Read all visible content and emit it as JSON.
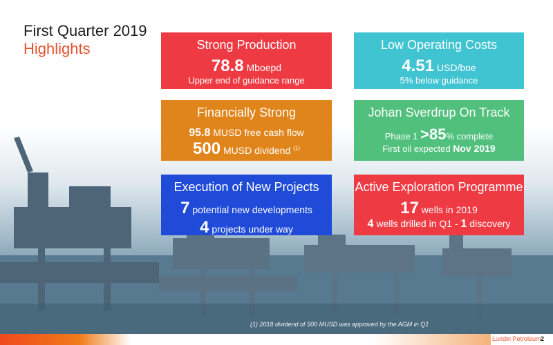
{
  "title": {
    "line1": "First Quarter 2019",
    "line2": "Highlights"
  },
  "cards": [
    {
      "title": "Strong Production",
      "value": "78.8",
      "unit": " Mboepd",
      "sub": "Upper end of guidance range"
    },
    {
      "title": "Low Operating Costs",
      "value": "4.51",
      "unit": " USD/boe",
      "sub": "5% below guidance"
    },
    {
      "title": "Financially Strong",
      "value1": "95.8",
      "text1": " MUSD free cash flow",
      "value2": "500",
      "text2": " MUSD dividend ",
      "note": "(1)"
    },
    {
      "title": "Johan Sverdrup On Track",
      "prefix": "Phase 1 ",
      "value": ">85",
      "text": "% complete",
      "sub": "First oil expected ",
      "sub_bold": "Nov 2019"
    },
    {
      "title": "Execution of New Projects",
      "value1": "7",
      "text1": " potential new developments",
      "value2": "4",
      "text2": " projects under way"
    },
    {
      "title": "Active Exploration Programme",
      "value1": "17",
      "text1": " wells in 2019",
      "value2a": "4",
      "text2a": " wells drilled in Q1 - ",
      "value2b": "1",
      "text2b": " discovery"
    }
  ],
  "footnote": "(1) 2018 dividend of 500 MUSD was approved by the AGM in Q1",
  "footer": {
    "brand": "Lundin Petroleum",
    "page": "2"
  },
  "colors": {
    "red": "#ee3a43",
    "cyan": "#40c4d1",
    "orange": "#e0851b",
    "green": "#50c07c",
    "blue": "#1f4bd8",
    "accent": "#e8502a"
  }
}
